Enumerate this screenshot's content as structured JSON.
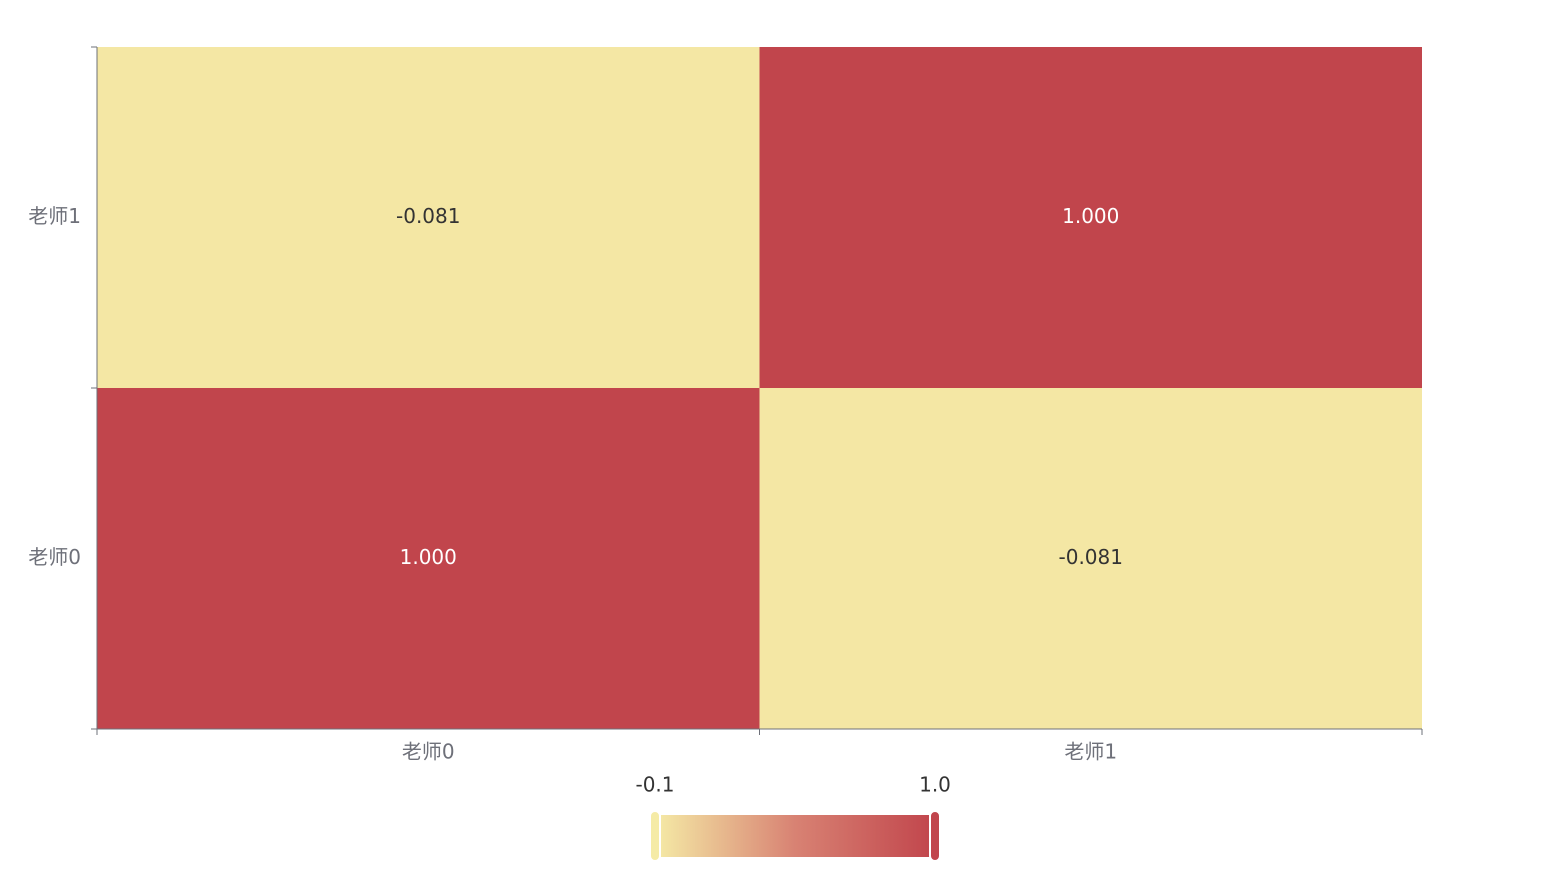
{
  "chart_data": {
    "type": "heatmap",
    "x_categories": [
      "老师0",
      "老师1"
    ],
    "y_categories": [
      "老师0",
      "老师1"
    ],
    "values": [
      [
        1,
        -0.081
      ],
      [
        -0.081,
        1
      ]
    ],
    "value_labels": [
      [
        "1.000",
        "-0.081"
      ],
      [
        "-0.081",
        "1.000"
      ]
    ],
    "visual_map": {
      "range": [
        -0.1,
        {
          "value": 1,
          "label": "1.0"
        }
      ],
      "colors": [
        "#f5eba6",
        "#d88273",
        "#c1454c"
      ]
    }
  }
}
